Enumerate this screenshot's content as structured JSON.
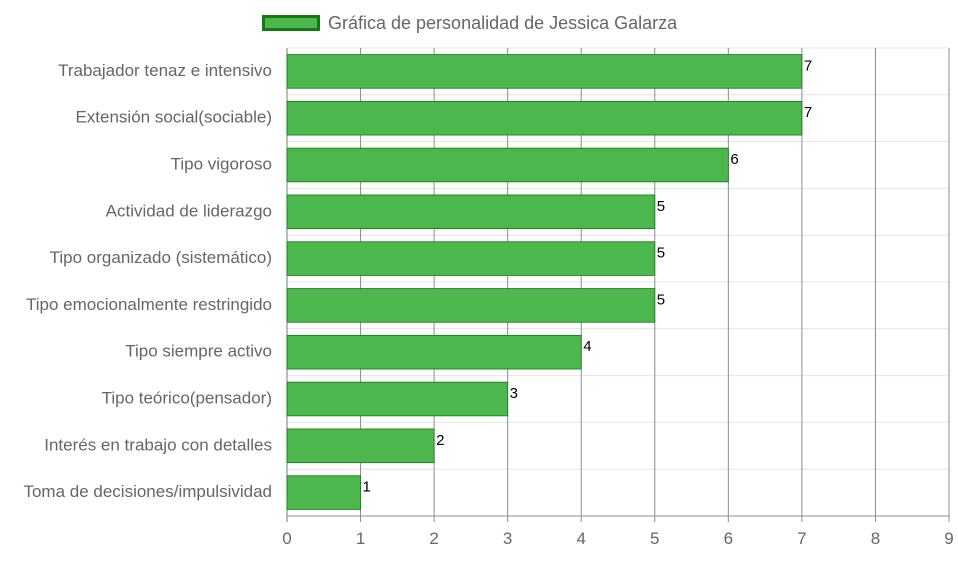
{
  "chart_data": {
    "type": "bar",
    "orientation": "horizontal",
    "title": "",
    "xlabel": "",
    "ylabel": "",
    "categories": [
      "Trabajador tenaz e intensivo",
      "Extensión social(sociable)",
      "Tipo vigoroso",
      "Actividad de liderazgo",
      "Tipo organizado (sistemático)",
      "Tipo emocionalmente restringido",
      "Tipo siempre activo",
      "Tipo teórico(pensador)",
      "Interés en trabajo con detalles",
      "Toma de decisiones/impulsividad"
    ],
    "series": [
      {
        "name": "Gráfica de personalidad de Jessica Galarza",
        "values": [
          7,
          7,
          6,
          5,
          5,
          5,
          4,
          3,
          2,
          1
        ],
        "color": "#4cb74c",
        "border_color": "#137a13"
      }
    ],
    "xlim": [
      0,
      9
    ],
    "xticks": [
      0,
      1,
      2,
      3,
      4,
      5,
      6,
      7,
      8,
      9
    ],
    "grid": true,
    "legend_position": "top",
    "data_labels": true
  }
}
